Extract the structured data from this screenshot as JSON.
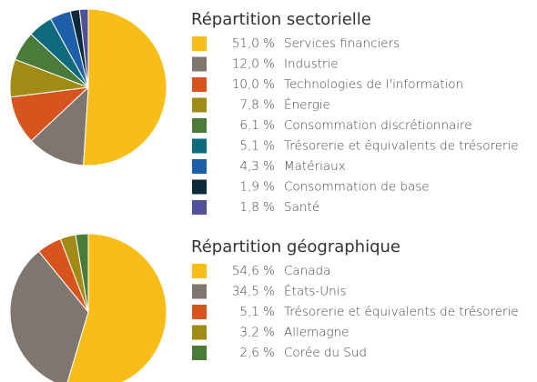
{
  "chart_data": [
    {
      "type": "pie",
      "title": "Répartition sectorielle",
      "categories": [
        "Services financiers",
        "Industrie",
        "Technologies de l'information",
        "Énergie",
        "Consommation discrétionnaire",
        "Trésorerie et équivalents de trésorerie",
        "Matériaux",
        "Consommation de base",
        "Santé"
      ],
      "values": [
        51.0,
        12.0,
        10.0,
        7.8,
        6.1,
        5.1,
        4.3,
        1.9,
        1.8
      ],
      "value_labels": [
        "51,0 %",
        "12,0 %",
        "10,0 %",
        "7,8 %",
        "6,1 %",
        "5,1 %",
        "4,3 %",
        "1,9 %",
        "1,8 %"
      ],
      "colors": [
        "#f8bd19",
        "#7f766f",
        "#d8541f",
        "#a18b14",
        "#4b7b3b",
        "#0f6b7b",
        "#1d60a9",
        "#0c2a3a",
        "#50509b"
      ]
    },
    {
      "type": "pie",
      "title": "Répartition géographique",
      "categories": [
        "Canada",
        "États-Unis",
        "Trésorerie et équivalents de trésorerie",
        "Allemagne",
        "Corée du Sud"
      ],
      "values": [
        54.6,
        34.5,
        5.1,
        3.2,
        2.6
      ],
      "value_labels": [
        "54,6 %",
        "34,5 %",
        "5,1 %",
        "3,2 %",
        "2,6 %"
      ],
      "colors": [
        "#f8bd19",
        "#7f766f",
        "#d8541f",
        "#a18b14",
        "#4b7b3b"
      ]
    }
  ]
}
